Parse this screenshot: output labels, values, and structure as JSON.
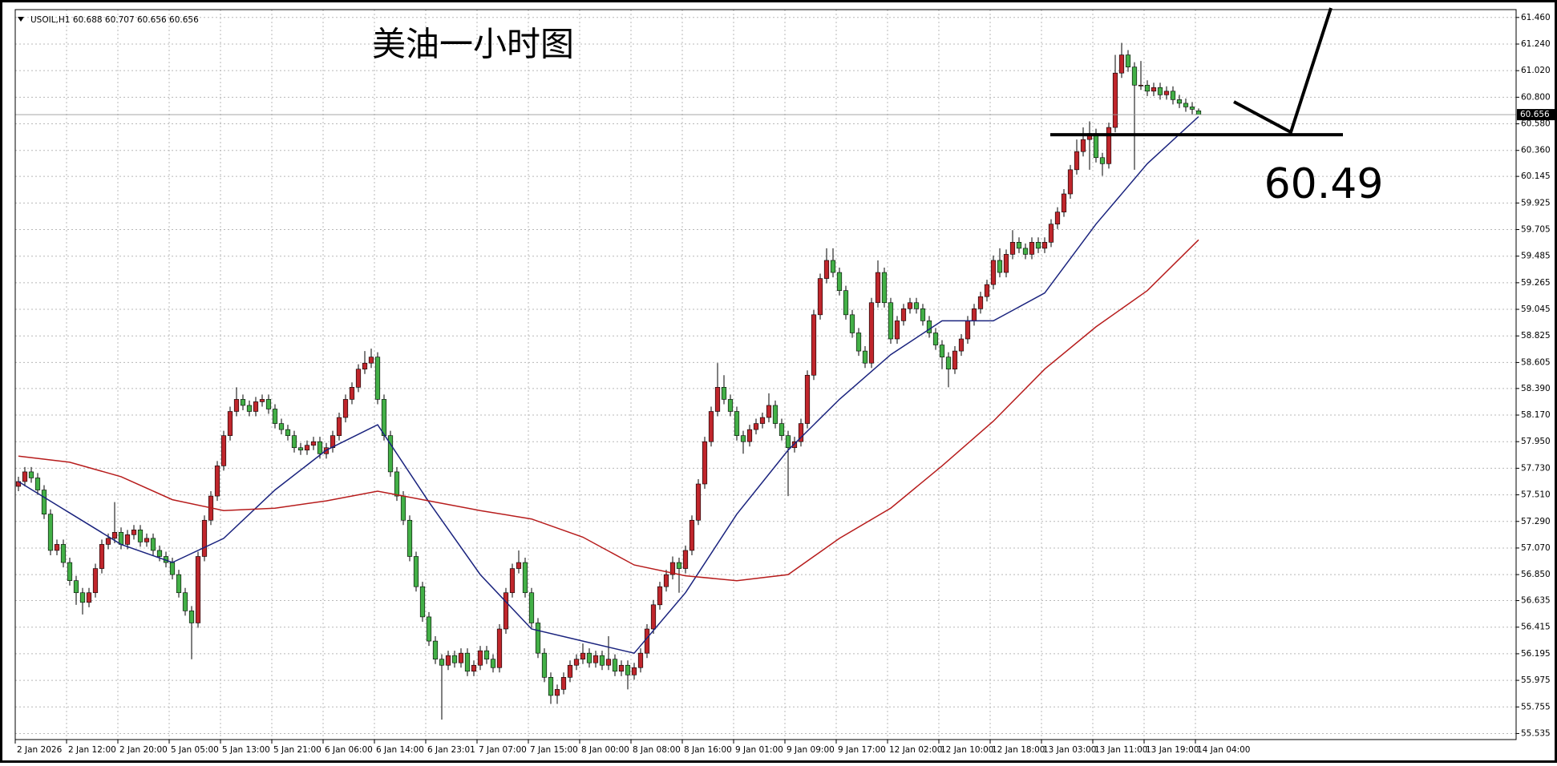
{
  "chart_data": {
    "type": "candlestick",
    "header": "USOIL,H1 60.688 60.707 60.656 60.656",
    "title": "美油一小时图",
    "up_color": "#c0262c",
    "down_color": "#43b047",
    "grid": true,
    "ylim": [
      55.485,
      61.525
    ],
    "yticks": [
      {
        "value": 61.46,
        "label": "61.460"
      },
      {
        "value": 61.24,
        "label": "61.240"
      },
      {
        "value": 61.02,
        "label": "61.020"
      },
      {
        "value": 60.8,
        "label": "60.800"
      },
      {
        "value": 60.58,
        "label": "60.580"
      },
      {
        "value": 60.36,
        "label": "60.360"
      },
      60.145,
      59.925,
      59.705,
      59.485,
      59.265,
      59.045,
      58.825,
      58.605,
      {
        "value": 58.39,
        "label": "58.390"
      },
      {
        "value": 58.17,
        "label": "58.170"
      },
      {
        "value": 57.95,
        "label": "57.950"
      },
      {
        "value": 57.73,
        "label": "57.730"
      },
      {
        "value": 57.51,
        "label": "57.510"
      },
      {
        "value": 57.29,
        "label": "57.290"
      },
      {
        "value": 57.07,
        "label": "57.070"
      },
      {
        "value": 56.85,
        "label": "56.850"
      },
      56.635,
      56.415,
      56.195,
      55.975,
      55.755,
      55.535
    ],
    "last_price": 60.656,
    "level": 60.49,
    "categories": [
      "2 Jan 2026",
      null,
      null,
      null,
      null,
      null,
      null,
      null,
      "2 Jan 12:00",
      null,
      null,
      null,
      null,
      null,
      null,
      null,
      "2 Jan 20:00",
      null,
      null,
      null,
      null,
      null,
      null,
      null,
      "5 Jan 05:00",
      null,
      null,
      null,
      null,
      null,
      null,
      null,
      "5 Jan 13:00",
      null,
      null,
      null,
      null,
      null,
      null,
      null,
      "5 Jan 21:00",
      null,
      null,
      null,
      null,
      null,
      null,
      null,
      "6 Jan 06:00",
      null,
      null,
      null,
      null,
      null,
      null,
      null,
      "6 Jan 14:00",
      null,
      null,
      null,
      null,
      null,
      null,
      null,
      "6 Jan 23:01",
      null,
      null,
      null,
      null,
      null,
      null,
      null,
      "7 Jan 07:00",
      null,
      null,
      null,
      null,
      null,
      null,
      null,
      "7 Jan 15:00",
      null,
      null,
      null,
      null,
      null,
      null,
      null,
      "8 Jan 00:00",
      null,
      null,
      null,
      null,
      null,
      null,
      null,
      "8 Jan 08:00",
      null,
      null,
      null,
      null,
      null,
      null,
      null,
      "8 Jan 16:00",
      null,
      null,
      null,
      null,
      null,
      null,
      null,
      "9 Jan 01:00",
      null,
      null,
      null,
      null,
      null,
      null,
      null,
      "9 Jan 09:00",
      null,
      null,
      null,
      null,
      null,
      null,
      null,
      "9 Jan 17:00",
      null,
      null,
      null,
      null,
      null,
      null,
      null,
      "12 Jan 02:00",
      null,
      null,
      null,
      null,
      null,
      null,
      null,
      "12 Jan 10:00",
      null,
      null,
      null,
      null,
      null,
      null,
      null,
      "12 Jan 18:00",
      null,
      null,
      null,
      null,
      null,
      null,
      null,
      "13 Jan 03:00",
      null,
      null,
      null,
      null,
      null,
      null,
      null,
      "13 Jan 11:00",
      null,
      null,
      null,
      null,
      null,
      null,
      null,
      "13 Jan 19:00",
      null,
      null,
      null,
      null,
      null,
      null,
      null,
      "14 Jan 04:00"
    ],
    "ohlc": [
      [
        57.58,
        57.66,
        57.54,
        57.62
      ],
      [
        57.62,
        57.74,
        57.58,
        57.7
      ],
      [
        57.7,
        57.74,
        57.61,
        57.65
      ],
      [
        57.65,
        57.69,
        57.51,
        57.55
      ],
      [
        57.55,
        57.59,
        57.31,
        57.35
      ],
      [
        57.35,
        57.39,
        57.01,
        57.05
      ],
      [
        57.05,
        57.14,
        57.01,
        57.1
      ],
      [
        57.1,
        57.14,
        56.91,
        56.95
      ],
      [
        56.95,
        56.99,
        56.76,
        56.8
      ],
      [
        56.8,
        56.84,
        56.6,
        56.7
      ],
      [
        56.7,
        56.74,
        56.52,
        56.62
      ],
      [
        56.62,
        56.74,
        56.58,
        56.7
      ],
      [
        56.7,
        56.94,
        56.66,
        56.9
      ],
      [
        56.9,
        57.14,
        56.86,
        57.1
      ],
      [
        57.1,
        57.19,
        57.06,
        57.15
      ],
      [
        57.15,
        57.45,
        57.11,
        57.2
      ],
      [
        57.2,
        57.24,
        57.06,
        57.1
      ],
      [
        57.1,
        57.22,
        57.06,
        57.18
      ],
      [
        57.18,
        57.26,
        57.14,
        57.22
      ],
      [
        57.22,
        57.26,
        57.08,
        57.12
      ],
      [
        57.12,
        57.19,
        57.08,
        57.15
      ],
      [
        57.15,
        57.19,
        57.01,
        57.05
      ],
      [
        57.05,
        57.09,
        56.96,
        57.0
      ],
      [
        57.0,
        57.04,
        56.91,
        56.95
      ],
      [
        56.95,
        56.99,
        56.81,
        56.85
      ],
      [
        56.85,
        56.89,
        56.66,
        56.7
      ],
      [
        56.7,
        56.74,
        56.51,
        56.55
      ],
      [
        56.55,
        56.59,
        56.15,
        56.45
      ],
      [
        56.45,
        57.04,
        56.41,
        57.0
      ],
      [
        57.0,
        57.34,
        56.96,
        57.3
      ],
      [
        57.3,
        57.54,
        57.26,
        57.5
      ],
      [
        57.5,
        57.79,
        57.46,
        57.75
      ],
      [
        57.75,
        58.04,
        57.71,
        58.0
      ],
      [
        58.0,
        58.24,
        57.96,
        58.2
      ],
      [
        58.2,
        58.4,
        58.16,
        58.3
      ],
      [
        58.3,
        58.34,
        58.21,
        58.25
      ],
      [
        58.25,
        58.29,
        58.16,
        58.2
      ],
      [
        58.2,
        58.32,
        58.16,
        58.28
      ],
      [
        58.28,
        58.34,
        58.24,
        58.3
      ],
      [
        58.3,
        58.34,
        58.18,
        58.22
      ],
      [
        58.22,
        58.26,
        58.06,
        58.1
      ],
      [
        58.1,
        58.14,
        58.01,
        58.05
      ],
      [
        58.05,
        58.09,
        57.96,
        58.0
      ],
      [
        58.0,
        58.04,
        57.86,
        57.9
      ],
      [
        57.9,
        57.94,
        57.84,
        57.88
      ],
      [
        57.88,
        57.96,
        57.84,
        57.92
      ],
      [
        57.92,
        57.99,
        57.88,
        57.95
      ],
      [
        57.95,
        57.99,
        57.81,
        57.85
      ],
      [
        57.85,
        57.94,
        57.81,
        57.9
      ],
      [
        57.9,
        58.04,
        57.86,
        58.0
      ],
      [
        58.0,
        58.19,
        57.96,
        58.15
      ],
      [
        58.15,
        58.34,
        58.11,
        58.3
      ],
      [
        58.3,
        58.44,
        58.26,
        58.4
      ],
      [
        58.4,
        58.59,
        58.36,
        58.55
      ],
      [
        58.55,
        58.7,
        58.51,
        58.6
      ],
      [
        58.6,
        58.72,
        58.56,
        58.65
      ],
      [
        58.65,
        58.69,
        58.26,
        58.3
      ],
      [
        58.3,
        58.34,
        57.96,
        58.0
      ],
      [
        58.0,
        58.04,
        57.66,
        57.7
      ],
      [
        57.7,
        57.74,
        57.46,
        57.5
      ],
      [
        57.5,
        57.54,
        57.26,
        57.3
      ],
      [
        57.3,
        57.34,
        56.96,
        57.0
      ],
      [
        57.0,
        57.04,
        56.71,
        56.75
      ],
      [
        56.75,
        56.79,
        56.46,
        56.5
      ],
      [
        56.5,
        56.54,
        56.26,
        56.3
      ],
      [
        56.3,
        56.34,
        56.11,
        56.15
      ],
      [
        56.15,
        56.19,
        55.65,
        56.1
      ],
      [
        56.1,
        56.22,
        56.06,
        56.18
      ],
      [
        56.18,
        56.22,
        56.08,
        56.12
      ],
      [
        56.12,
        56.24,
        56.08,
        56.2
      ],
      [
        56.2,
        56.24,
        56.01,
        56.05
      ],
      [
        56.05,
        56.14,
        56.01,
        56.1
      ],
      [
        56.1,
        56.26,
        56.06,
        56.22
      ],
      [
        56.22,
        56.26,
        56.11,
        56.15
      ],
      [
        56.15,
        56.19,
        56.04,
        56.08
      ],
      [
        56.08,
        56.44,
        56.04,
        56.4
      ],
      [
        56.4,
        56.74,
        56.36,
        56.7
      ],
      [
        56.7,
        56.94,
        56.66,
        56.9
      ],
      [
        56.9,
        57.05,
        56.86,
        56.95
      ],
      [
        56.95,
        56.99,
        56.66,
        56.7
      ],
      [
        56.7,
        56.74,
        56.41,
        56.45
      ],
      [
        56.45,
        56.49,
        56.16,
        56.2
      ],
      [
        56.2,
        56.24,
        55.96,
        56.0
      ],
      [
        56.0,
        56.04,
        55.78,
        55.85
      ],
      [
        55.85,
        55.94,
        55.78,
        55.9
      ],
      [
        55.9,
        56.04,
        55.86,
        56.0
      ],
      [
        56.0,
        56.14,
        55.96,
        56.1
      ],
      [
        56.1,
        56.19,
        56.06,
        56.15
      ],
      [
        56.15,
        56.28,
        56.11,
        56.2
      ],
      [
        56.2,
        56.24,
        56.08,
        56.12
      ],
      [
        56.12,
        56.22,
        56.08,
        56.18
      ],
      [
        56.18,
        56.22,
        56.06,
        56.1
      ],
      [
        56.1,
        56.34,
        56.06,
        56.15
      ],
      [
        56.15,
        56.19,
        56.01,
        56.05
      ],
      [
        56.05,
        56.14,
        56.01,
        56.1
      ],
      [
        56.1,
        56.14,
        55.9,
        56.02
      ],
      [
        56.02,
        56.12,
        55.98,
        56.08
      ],
      [
        56.08,
        56.24,
        56.04,
        56.2
      ],
      [
        56.2,
        56.44,
        56.16,
        56.4
      ],
      [
        56.4,
        56.64,
        56.36,
        56.6
      ],
      [
        56.6,
        56.79,
        56.56,
        56.75
      ],
      [
        56.75,
        56.89,
        56.71,
        56.85
      ],
      [
        56.85,
        57.0,
        56.81,
        56.95
      ],
      [
        56.95,
        56.99,
        56.7,
        56.9
      ],
      [
        56.9,
        57.09,
        56.86,
        57.05
      ],
      [
        57.05,
        57.34,
        57.01,
        57.3
      ],
      [
        57.3,
        57.64,
        57.26,
        57.6
      ],
      [
        57.6,
        57.99,
        57.56,
        57.95
      ],
      [
        57.95,
        58.24,
        57.91,
        58.2
      ],
      [
        58.2,
        58.6,
        58.16,
        58.4
      ],
      [
        58.4,
        58.5,
        58.26,
        58.3
      ],
      [
        58.3,
        58.34,
        58.16,
        58.2
      ],
      [
        58.2,
        58.24,
        57.96,
        58.0
      ],
      [
        58.0,
        58.04,
        57.85,
        57.95
      ],
      [
        57.95,
        58.09,
        57.91,
        58.05
      ],
      [
        58.05,
        58.14,
        58.01,
        58.1
      ],
      [
        58.1,
        58.19,
        58.06,
        58.15
      ],
      [
        58.15,
        58.35,
        58.11,
        58.25
      ],
      [
        58.25,
        58.29,
        58.06,
        58.1
      ],
      [
        58.1,
        58.14,
        57.96,
        58.0
      ],
      [
        58.0,
        58.04,
        57.5,
        57.9
      ],
      [
        57.9,
        57.99,
        57.86,
        57.95
      ],
      [
        57.95,
        58.14,
        57.91,
        58.1
      ],
      [
        58.1,
        58.54,
        58.06,
        58.5
      ],
      [
        58.5,
        59.04,
        58.46,
        59.0
      ],
      [
        59.0,
        59.34,
        58.96,
        59.3
      ],
      [
        59.3,
        59.55,
        59.26,
        59.45
      ],
      [
        59.45,
        59.55,
        59.31,
        59.35
      ],
      [
        59.35,
        59.39,
        59.16,
        59.2
      ],
      [
        59.2,
        59.24,
        58.96,
        59.0
      ],
      [
        59.0,
        59.04,
        58.81,
        58.85
      ],
      [
        58.85,
        58.89,
        58.66,
        58.7
      ],
      [
        58.7,
        58.74,
        58.56,
        58.6
      ],
      [
        58.6,
        59.14,
        58.56,
        59.1
      ],
      [
        59.1,
        59.45,
        59.06,
        59.35
      ],
      [
        59.35,
        59.39,
        59.06,
        59.1
      ],
      [
        59.1,
        59.14,
        58.76,
        58.8
      ],
      [
        58.8,
        58.99,
        58.76,
        58.95
      ],
      [
        58.95,
        59.09,
        58.91,
        59.05
      ],
      [
        59.05,
        59.14,
        59.01,
        59.1
      ],
      [
        59.1,
        59.14,
        59.01,
        59.05
      ],
      [
        59.05,
        59.09,
        58.91,
        58.95
      ],
      [
        58.95,
        58.99,
        58.81,
        58.85
      ],
      [
        58.85,
        58.89,
        58.71,
        58.75
      ],
      [
        58.75,
        58.79,
        58.55,
        58.65
      ],
      [
        58.65,
        58.69,
        58.4,
        58.55
      ],
      [
        58.55,
        58.74,
        58.51,
        58.7
      ],
      [
        58.7,
        58.84,
        58.66,
        58.8
      ],
      [
        58.8,
        58.99,
        58.76,
        58.95
      ],
      [
        58.95,
        59.09,
        58.91,
        59.05
      ],
      [
        59.05,
        59.19,
        59.01,
        59.15
      ],
      [
        59.15,
        59.29,
        59.11,
        59.25
      ],
      [
        59.25,
        59.49,
        59.21,
        59.45
      ],
      [
        59.45,
        59.55,
        59.31,
        59.35
      ],
      [
        59.35,
        59.54,
        59.31,
        59.5
      ],
      [
        59.5,
        59.7,
        59.46,
        59.6
      ],
      [
        59.6,
        59.64,
        59.51,
        59.55
      ],
      [
        59.55,
        59.59,
        59.46,
        59.5
      ],
      [
        59.5,
        59.64,
        59.46,
        59.6
      ],
      [
        59.6,
        59.64,
        59.51,
        59.55
      ],
      [
        59.55,
        59.64,
        59.51,
        59.6
      ],
      [
        59.6,
        59.79,
        59.56,
        59.75
      ],
      [
        59.75,
        59.89,
        59.71,
        59.85
      ],
      [
        59.85,
        60.04,
        59.81,
        60.0
      ],
      [
        60.0,
        60.24,
        59.96,
        60.2
      ],
      [
        60.2,
        60.45,
        60.16,
        60.35
      ],
      [
        60.35,
        60.55,
        60.31,
        60.45
      ],
      [
        60.45,
        60.6,
        60.2,
        60.5
      ],
      [
        60.5,
        60.54,
        60.26,
        60.3
      ],
      [
        60.3,
        60.34,
        60.15,
        60.25
      ],
      [
        60.25,
        60.59,
        60.21,
        60.55
      ],
      [
        60.55,
        61.15,
        60.51,
        61.0
      ],
      [
        61.0,
        61.25,
        60.96,
        61.15
      ],
      [
        61.15,
        61.19,
        61.01,
        61.05
      ],
      [
        61.05,
        61.09,
        60.2,
        60.9
      ],
      [
        60.9,
        61.1,
        60.86,
        60.9
      ],
      [
        60.9,
        60.94,
        60.81,
        60.85
      ],
      [
        60.85,
        60.92,
        60.81,
        60.88
      ],
      [
        60.88,
        60.92,
        60.78,
        60.82
      ],
      [
        60.82,
        60.89,
        60.78,
        60.85
      ],
      [
        60.85,
        60.89,
        60.74,
        60.78
      ],
      [
        60.78,
        60.82,
        60.71,
        60.75
      ],
      [
        60.75,
        60.79,
        60.68,
        60.72
      ],
      [
        60.72,
        60.76,
        60.66,
        60.7
      ],
      [
        60.688,
        60.707,
        60.656,
        60.656
      ]
    ],
    "lines": [
      {
        "color": "#1a237e",
        "x": [
          0,
          8,
          16,
          24,
          32,
          40,
          48,
          56,
          64,
          72,
          80,
          88,
          96,
          104,
          112,
          120,
          128,
          136,
          144,
          152,
          160,
          168,
          176,
          184
        ],
        "values": [
          57.62,
          57.36,
          57.1,
          56.95,
          57.15,
          57.55,
          57.88,
          58.09,
          57.45,
          56.85,
          56.4,
          56.3,
          56.2,
          56.7,
          57.35,
          57.88,
          58.3,
          58.67,
          58.95,
          58.95,
          59.18,
          59.75,
          60.25,
          60.64
        ]
      },
      {
        "color": "#b71c1c",
        "x": [
          0,
          8,
          16,
          24,
          32,
          40,
          48,
          56,
          64,
          72,
          80,
          88,
          96,
          104,
          112,
          120,
          128,
          136,
          144,
          152,
          160,
          168,
          176,
          184
        ],
        "values": [
          57.83,
          57.78,
          57.66,
          57.47,
          57.38,
          57.4,
          57.46,
          57.54,
          57.46,
          57.38,
          57.31,
          57.16,
          56.93,
          56.84,
          56.8,
          56.85,
          57.15,
          57.4,
          57.75,
          58.12,
          58.55,
          58.9,
          59.2,
          59.62
        ]
      }
    ]
  }
}
